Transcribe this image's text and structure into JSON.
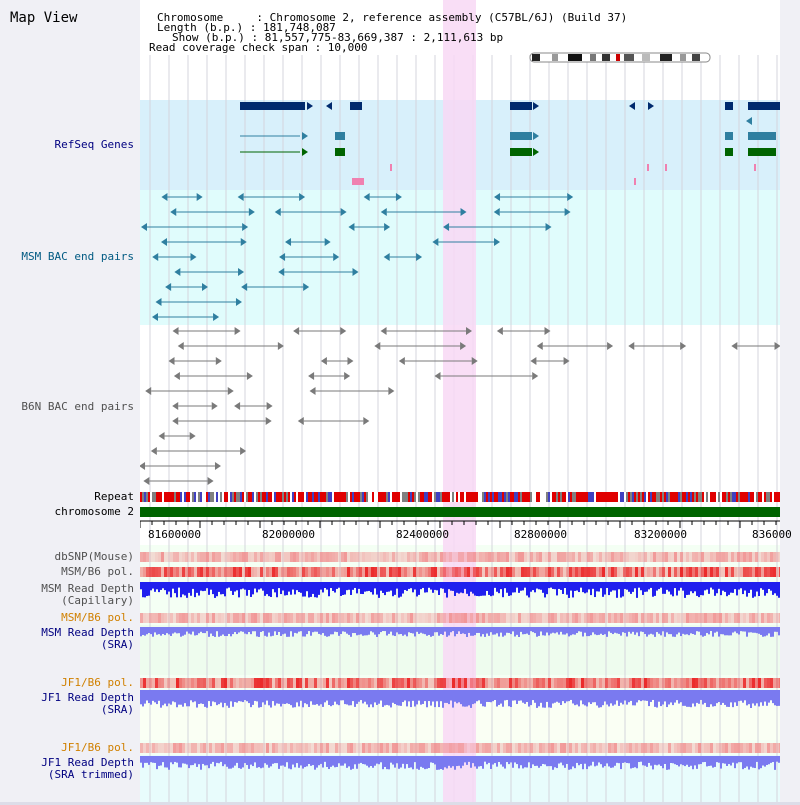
{
  "panel": {
    "title": "Map View"
  },
  "info": {
    "chromosome_line": "Chromosome     : Chromosome 2, reference assembly (C57BL/6J) (Build 37)",
    "length_line": "Length (b.p.) : 181,748,087",
    "show_line": "Show (b.p.) : 81,557,775-83,669,387 : 2,111,613 bp",
    "coverage_line": "Read coverage check span : 10,000"
  },
  "tracks": {
    "refseq": "RefSeq Genes",
    "msm_bac": "MSM BAC end pairs",
    "b6n_bac": "B6N BAC end pairs",
    "repeat": "Repeat",
    "chromosome": "chromosome 2",
    "dbsnp": "dbSNP(Mouse)",
    "msm_pol": "MSM/B6 pol.",
    "msm_depth_cap_1": "MSM Read Depth",
    "msm_depth_cap_2": "(Capillary)",
    "msm_pol_2": "MSM/B6 pol.",
    "msm_depth_sra_1": "MSM Read Depth",
    "msm_depth_sra_2": "(SRA)",
    "jf1_pol": "JF1/B6 pol.",
    "jf1_depth_1": "JF1 Read Depth",
    "jf1_depth_2": "(SRA)",
    "jf1_pol_2": "JF1/B6 pol.",
    "jf1_trim_1": "JF1 Read Depth",
    "jf1_trim_2": "(SRA trimmed)"
  },
  "axis": {
    "ticks": [
      "81600000",
      "82000000",
      "82400000",
      "82800000",
      "83200000",
      "836000"
    ]
  },
  "colors": {
    "refseq_bg": "#d8f0fb",
    "msm_bg": "#e0fcfc",
    "highlight": "#f8d8f4",
    "refseq_label": "#000080",
    "msm_label": "#005a82",
    "b6n_label": "#505050",
    "pol_label": "#d08000",
    "depth_label": "#000080",
    "navy": "#002a6e",
    "teal": "#2f7fa0",
    "green": "#006400",
    "chrom_green": "#006400",
    "depth_blue": "#2020ee",
    "depth_light": "#7a7af0"
  }
}
